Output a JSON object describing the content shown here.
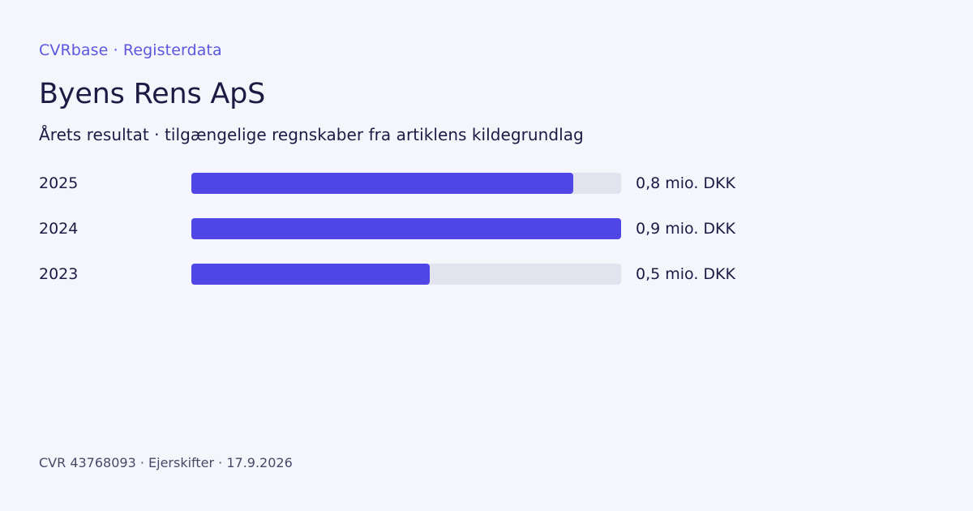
{
  "header": {
    "brand": "CVRbase · Registerdata",
    "company_name": "Byens Rens ApS",
    "subtitle": "Årets resultat · tilgængelige regnskaber fra artiklens kildegrundlag"
  },
  "footer": {
    "text": "CVR 43768093 · Ejerskifter · 17.9.2026"
  },
  "colors": {
    "background": "#f5f5fc",
    "accent": "#5b58de",
    "bar": "#4f46e5",
    "track": "#e3e3ef",
    "text": "#1d1b44"
  },
  "chart_data": {
    "type": "bar",
    "orientation": "horizontal",
    "categories": [
      "2025",
      "2024",
      "2023"
    ],
    "values": [
      0.8,
      0.9,
      0.5
    ],
    "value_labels": [
      "0,8 mio. DKK",
      "0,9 mio. DKK",
      "0,5 mio. DKK"
    ],
    "xlim": [
      0,
      0.9
    ],
    "title": "",
    "xlabel": "",
    "ylabel": "",
    "grid": false,
    "legend": "none"
  }
}
